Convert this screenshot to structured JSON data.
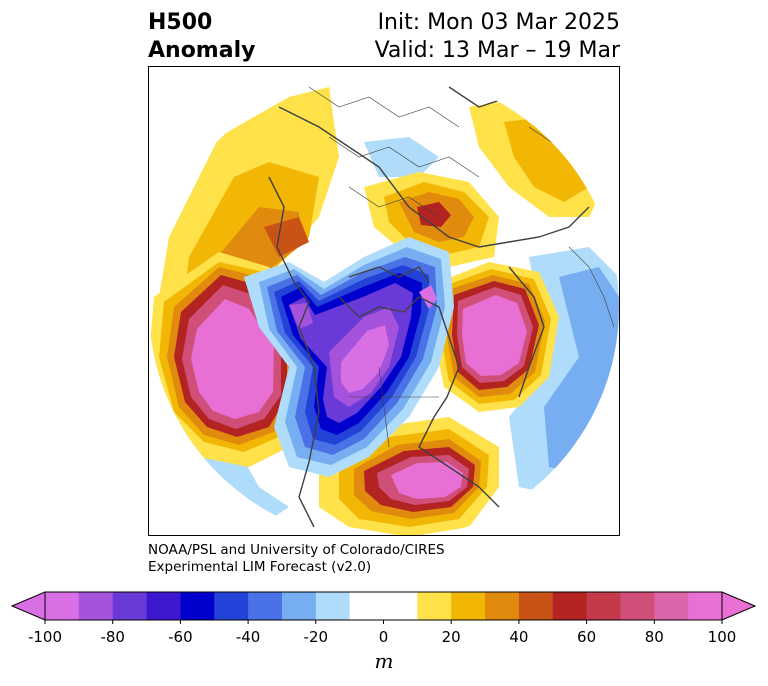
{
  "header": {
    "title_line1": "H500",
    "title_line2": "Anomaly",
    "init_text": "Init: Mon 03 Mar 2025",
    "valid_text": "Valid: 13 Mar – 19 Mar"
  },
  "credit": {
    "line1": "NOAA/PSL and University of Colorado/CIRES",
    "line2": "Experimental LIM Forecast (v2.0)"
  },
  "colorbar": {
    "unit": "m",
    "tick_labels": [
      "-100",
      "-80",
      "-60",
      "-40",
      "-20",
      "0",
      "20",
      "40",
      "60",
      "80",
      "100"
    ],
    "levels": [
      -100,
      -90,
      -80,
      -70,
      -60,
      -50,
      -40,
      -30,
      -20,
      -10,
      10,
      20,
      30,
      40,
      50,
      60,
      70,
      80,
      90,
      100
    ],
    "colors": [
      "#d86fe4",
      "#a552dd",
      "#6a3ad8",
      "#3d18cf",
      "#0000cc",
      "#2242d8",
      "#4a72e6",
      "#76aef1",
      "#aedcfa",
      "#ffffff",
      "#ffe24a",
      "#f2b705",
      "#e08a0e",
      "#c95317",
      "#b32322",
      "#c43a4b",
      "#d04f79",
      "#dc64a8",
      "#e86fd4"
    ],
    "under_color": "#d86fe4",
    "over_color": "#e86fd4"
  },
  "map": {
    "projection": "north polar stereographic",
    "field": "500 hPa geopotential height anomaly",
    "palette": {
      "neg10": "#d86fe4",
      "neg9": "#a552dd",
      "neg8": "#6a3ad8",
      "neg7": "#3d18cf",
      "neg6": "#0000cc",
      "neg5": "#2242d8",
      "neg4": "#4a72e6",
      "neg3": "#76aef1",
      "neg2": "#aedcfa",
      "pos2": "#ffe24a",
      "pos3": "#f2b705",
      "pos4": "#e08a0e",
      "pos5": "#c95317",
      "pos6": "#b32322",
      "pos7": "#c43a4b",
      "pos8": "#d04f79",
      "pos9": "#dc64a8",
      "pos10": "#e86fd4",
      "coast": "#404040"
    }
  }
}
